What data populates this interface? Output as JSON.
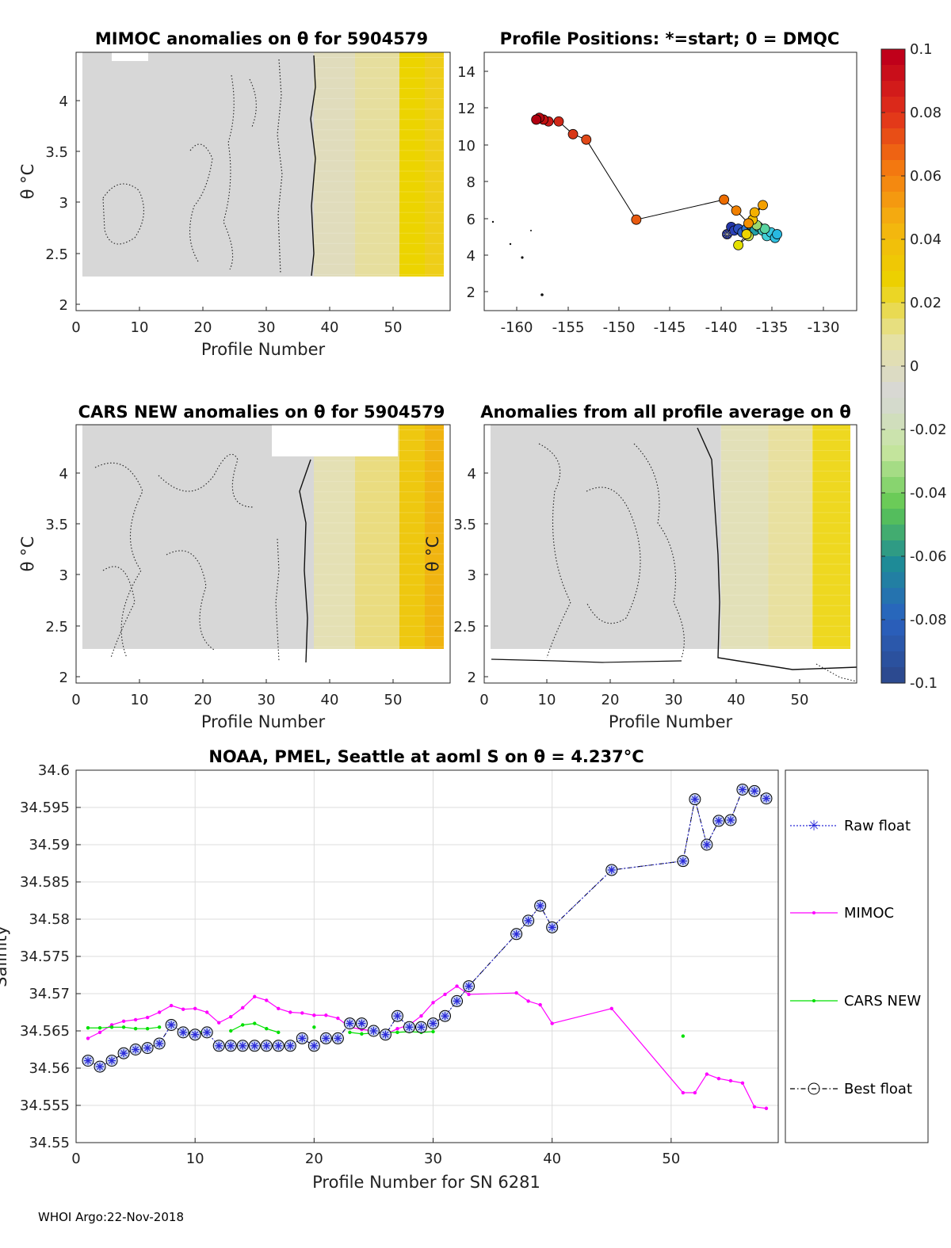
{
  "footer": "WHOI Argo:22-Nov-2018",
  "colorbar": {
    "ticks": [
      "0.1",
      "0.08",
      "0.06",
      "0.04",
      "0.02",
      "0",
      "-0.02",
      "-0.04",
      "-0.06",
      "-0.08",
      "-0.1"
    ],
    "colors": [
      "#c0001a",
      "#e0301a",
      "#f47a10",
      "#f4b410",
      "#ecd200",
      "#e6e2a0",
      "#d7d7d7",
      "#c8e6a0",
      "#60c850",
      "#1e8c96",
      "#2a62c0",
      "#2c4a90"
    ]
  },
  "chart_data": [
    {
      "id": "mimoc",
      "type": "heatmap",
      "title": "MIMOC anomalies on θ  for 5904579",
      "xlabel": "Profile Number",
      "ylabel": "θ °C",
      "xlim": [
        0,
        59
      ],
      "ylim": [
        1.95,
        4.45
      ],
      "xticks": [
        "0",
        "10",
        "20",
        "30",
        "40",
        "50"
      ],
      "yticks": [
        "2",
        "2.5",
        "3",
        "3.5",
        "4"
      ],
      "bands": [
        {
          "x0": 1,
          "x1": 37.5,
          "color": "#d7d7d7"
        },
        {
          "x0": 37.5,
          "x1": 44,
          "color": "#e0dcbc"
        },
        {
          "x0": 44,
          "x1": 51,
          "color": "#e6de9e"
        },
        {
          "x0": 51,
          "x1": 55,
          "color": "#ecd400"
        },
        {
          "x0": 55,
          "x1": 58,
          "color": "#eece18"
        }
      ]
    },
    {
      "id": "positions",
      "type": "scatter",
      "title": "Profile Positions: *=start; 0 = DMQC",
      "xticks": [
        "-160",
        "-155",
        "-150",
        "-145",
        "-140",
        "-135",
        "-130"
      ],
      "yticks": [
        "2",
        "4",
        "6",
        "8",
        "10",
        "12",
        "14"
      ],
      "xlim": [
        -163.5,
        -127
      ],
      "ylim": [
        0.8,
        15
      ],
      "track": [
        {
          "lon": -139.7,
          "lat": 5.0,
          "color": "#2230a0"
        },
        {
          "lon": -139.3,
          "lat": 5.4,
          "color": "#2436a8"
        },
        {
          "lon": -139.0,
          "lat": 5.2,
          "color": "#2a40b8"
        },
        {
          "lon": -138.6,
          "lat": 5.3,
          "color": "#2e50c0"
        },
        {
          "lon": -138.2,
          "lat": 5.1,
          "color": "#3064c8"
        },
        {
          "lon": -137.8,
          "lat": 5.3,
          "color": "#3478d0"
        },
        {
          "lon": -137.4,
          "lat": 5.5,
          "color": "#1e8ca8"
        },
        {
          "lon": -137.0,
          "lat": 5.2,
          "color": "#22a0a8"
        },
        {
          "lon": -136.6,
          "lat": 5.4,
          "color": "#30b4b0"
        },
        {
          "lon": -136.2,
          "lat": 5.2,
          "color": "#3cc8c0"
        },
        {
          "lon": -135.8,
          "lat": 4.9,
          "color": "#40d0d8"
        },
        {
          "lon": -135.4,
          "lat": 5.1,
          "color": "#38c8e0"
        },
        {
          "lon": -135.0,
          "lat": 4.8,
          "color": "#30c0e0"
        },
        {
          "lon": -134.8,
          "lat": 5.0,
          "color": "#28b8e0"
        },
        {
          "lon": -136.0,
          "lat": 5.3,
          "color": "#58d4a0"
        },
        {
          "lon": -136.8,
          "lat": 5.5,
          "color": "#9ad870"
        },
        {
          "lon": -137.6,
          "lat": 4.9,
          "color": "#c8e048"
        },
        {
          "lon": -138.6,
          "lat": 4.4,
          "color": "#e4e000"
        },
        {
          "lon": -137.8,
          "lat": 5.0,
          "color": "#ecd400"
        },
        {
          "lon": -137.2,
          "lat": 5.8,
          "color": "#f4c000"
        },
        {
          "lon": -137.0,
          "lat": 6.2,
          "color": "#f4b000"
        },
        {
          "lon": -136.2,
          "lat": 6.6,
          "color": "#f4a000"
        },
        {
          "lon": -137.6,
          "lat": 5.6,
          "color": "#f49000"
        },
        {
          "lon": -138.8,
          "lat": 6.3,
          "color": "#f08000"
        },
        {
          "lon": -140.0,
          "lat": 6.9,
          "color": "#ec6c00"
        },
        {
          "lon": -148.6,
          "lat": 5.8,
          "color": "#e85a10"
        },
        {
          "lon": -153.5,
          "lat": 10.2,
          "color": "#e04818"
        },
        {
          "lon": -154.8,
          "lat": 10.5,
          "color": "#d83818"
        },
        {
          "lon": -156.2,
          "lat": 11.2,
          "color": "#d02818"
        },
        {
          "lon": -157.2,
          "lat": 11.2,
          "color": "#c81818"
        },
        {
          "lon": -157.7,
          "lat": 11.3,
          "color": "#c01010"
        },
        {
          "lon": -158.1,
          "lat": 11.4,
          "color": "#b80810"
        },
        {
          "lon": -158.4,
          "lat": 11.3,
          "color": "#b00010"
        }
      ],
      "start": {
        "lon": -139.7,
        "lat": 5.0
      }
    },
    {
      "id": "cars",
      "type": "heatmap",
      "title": "CARS NEW anomalies on θ for 5904579",
      "xlabel": "Profile Number",
      "ylabel": "θ °C",
      "xlim": [
        0,
        59
      ],
      "ylim": [
        1.95,
        4.45
      ],
      "xticks": [
        "0",
        "10",
        "20",
        "30",
        "40",
        "50"
      ],
      "yticks": [
        "2",
        "2.5",
        "3",
        "3.5",
        "4"
      ],
      "bands": [
        {
          "x0": 1,
          "x1": 37.5,
          "color": "#d7d7d7"
        },
        {
          "x0": 37.5,
          "x1": 44,
          "color": "#e4e0b4"
        },
        {
          "x0": 44,
          "x1": 51,
          "color": "#eadc80"
        },
        {
          "x0": 51,
          "x1": 55,
          "color": "#eec810"
        },
        {
          "x0": 55,
          "x1": 58,
          "color": "#f0b410"
        }
      ]
    },
    {
      "id": "allavg",
      "type": "heatmap",
      "title": "Anomalies from all profile average on θ",
      "xlabel": "Profile Number",
      "ylabel": "θ °C",
      "xlim": [
        0,
        59
      ],
      "ylim": [
        1.95,
        4.45
      ],
      "xticks": [
        "0",
        "10",
        "20",
        "30",
        "40",
        "50"
      ],
      "yticks": [
        "2",
        "2.5",
        "3",
        "3.5",
        "4"
      ],
      "bands": [
        {
          "x0": 1,
          "x1": 37.5,
          "color": "#d7d7d7"
        },
        {
          "x0": 37.5,
          "x1": 45,
          "color": "#e2e0b8"
        },
        {
          "x0": 45,
          "x1": 52,
          "color": "#e8e0a0"
        },
        {
          "x0": 52,
          "x1": 58,
          "color": "#eed820"
        }
      ]
    },
    {
      "id": "salinity",
      "type": "line",
      "title": "NOAA, PMEL, Seattle at aoml S on θ = 4.237°C",
      "xlabel": "Profile Number for SN 6281",
      "ylabel": "Salinity",
      "xlim": [
        0,
        59
      ],
      "ylim": [
        34.55,
        34.6
      ],
      "xticks": [
        "0",
        "10",
        "20",
        "30",
        "40",
        "50"
      ],
      "yticks": [
        "34.55",
        "34.555",
        "34.56",
        "34.565",
        "34.57",
        "34.575",
        "34.58",
        "34.585",
        "34.59",
        "34.595",
        "34.6"
      ],
      "series": [
        {
          "name": "Raw float",
          "color": "#2a2ad8",
          "x": [
            1,
            2,
            3,
            4,
            5,
            6,
            7,
            8,
            9,
            10,
            11,
            12,
            13,
            14,
            15,
            16,
            17,
            18,
            19,
            20,
            21,
            22,
            23,
            24,
            25,
            26,
            27,
            28,
            29,
            30,
            31,
            32,
            33,
            37,
            38,
            39,
            40,
            45,
            51,
            52,
            53,
            54,
            55,
            56,
            57,
            58
          ],
          "y": [
            34.561,
            34.5602,
            34.561,
            34.562,
            34.5625,
            34.5627,
            34.5633,
            34.5658,
            34.5648,
            34.5645,
            34.5648,
            34.563,
            34.563,
            34.563,
            34.563,
            34.563,
            34.563,
            34.563,
            34.564,
            34.563,
            34.564,
            34.564,
            34.566,
            34.566,
            34.565,
            34.5645,
            34.567,
            34.5655,
            34.5655,
            34.566,
            34.567,
            34.569,
            34.571,
            34.578,
            34.5798,
            34.5818,
            34.5789,
            34.5866,
            34.5878,
            34.5961,
            34.59,
            34.5932,
            34.5933,
            34.5974,
            34.5972,
            34.5962
          ]
        },
        {
          "name": "MIMOC",
          "color": "#ff00ff",
          "x": [
            1,
            2,
            3,
            4,
            5,
            6,
            7,
            8,
            9,
            10,
            11,
            12,
            13,
            14,
            15,
            16,
            17,
            18,
            19,
            20,
            21,
            22,
            23,
            24,
            25,
            26,
            27,
            28,
            29,
            30,
            31,
            32,
            33,
            37,
            38,
            39,
            40,
            45,
            51,
            52,
            53,
            54,
            55,
            56,
            57,
            58
          ],
          "y": [
            34.564,
            34.5648,
            34.5658,
            34.5663,
            34.5665,
            34.5668,
            34.5675,
            34.5684,
            34.5679,
            34.568,
            34.5675,
            34.5661,
            34.5669,
            34.5681,
            34.5696,
            34.5691,
            34.568,
            34.5675,
            34.5674,
            34.5671,
            34.5671,
            34.5667,
            34.5655,
            34.5652,
            34.565,
            34.5645,
            34.5653,
            34.5658,
            34.567,
            34.5688,
            34.5699,
            34.571,
            34.5699,
            34.5701,
            34.569,
            34.5685,
            34.566,
            34.568,
            34.5567,
            34.5567,
            34.5592,
            34.5586,
            34.5583,
            34.558,
            34.5548,
            34.5546
          ]
        },
        {
          "name": "CARS NEW",
          "color": "#00e000",
          "x": [
            1,
            2,
            3,
            4,
            5,
            6,
            7,
            9,
            10,
            11,
            13,
            14,
            15,
            16,
            17,
            20,
            23,
            24,
            25,
            26,
            27,
            28,
            29,
            30,
            51
          ],
          "y": [
            34.5654,
            34.5654,
            34.5655,
            34.5655,
            34.5653,
            34.5653,
            34.5655,
            34.5648,
            34.5648,
            34.565,
            34.565,
            34.5658,
            34.566,
            34.5653,
            34.5648,
            34.5655,
            34.5648,
            34.5646,
            34.5647,
            34.5648,
            34.5648,
            34.5649,
            34.5648,
            34.5649,
            34.5643
          ]
        },
        {
          "name": "Best float",
          "color": "#000000",
          "x": [
            1,
            2,
            3,
            4,
            5,
            6,
            7,
            8,
            9,
            10,
            11,
            12,
            13,
            14,
            15,
            16,
            17,
            18,
            19,
            20,
            21,
            22,
            23,
            24,
            25,
            26,
            27,
            28,
            29,
            30,
            31,
            32,
            33,
            37,
            38,
            39,
            40,
            45,
            51,
            52,
            53,
            54,
            55,
            56,
            57,
            58
          ],
          "y": [
            34.561,
            34.5602,
            34.561,
            34.562,
            34.5625,
            34.5627,
            34.5633,
            34.5658,
            34.5648,
            34.5645,
            34.5648,
            34.563,
            34.563,
            34.563,
            34.563,
            34.563,
            34.563,
            34.563,
            34.564,
            34.563,
            34.564,
            34.564,
            34.566,
            34.566,
            34.565,
            34.5645,
            34.567,
            34.5655,
            34.5655,
            34.566,
            34.567,
            34.569,
            34.571,
            34.578,
            34.5798,
            34.5818,
            34.5789,
            34.5866,
            34.5878,
            34.5961,
            34.59,
            34.5932,
            34.5933,
            34.5974,
            34.5972,
            34.5962
          ]
        }
      ]
    }
  ]
}
